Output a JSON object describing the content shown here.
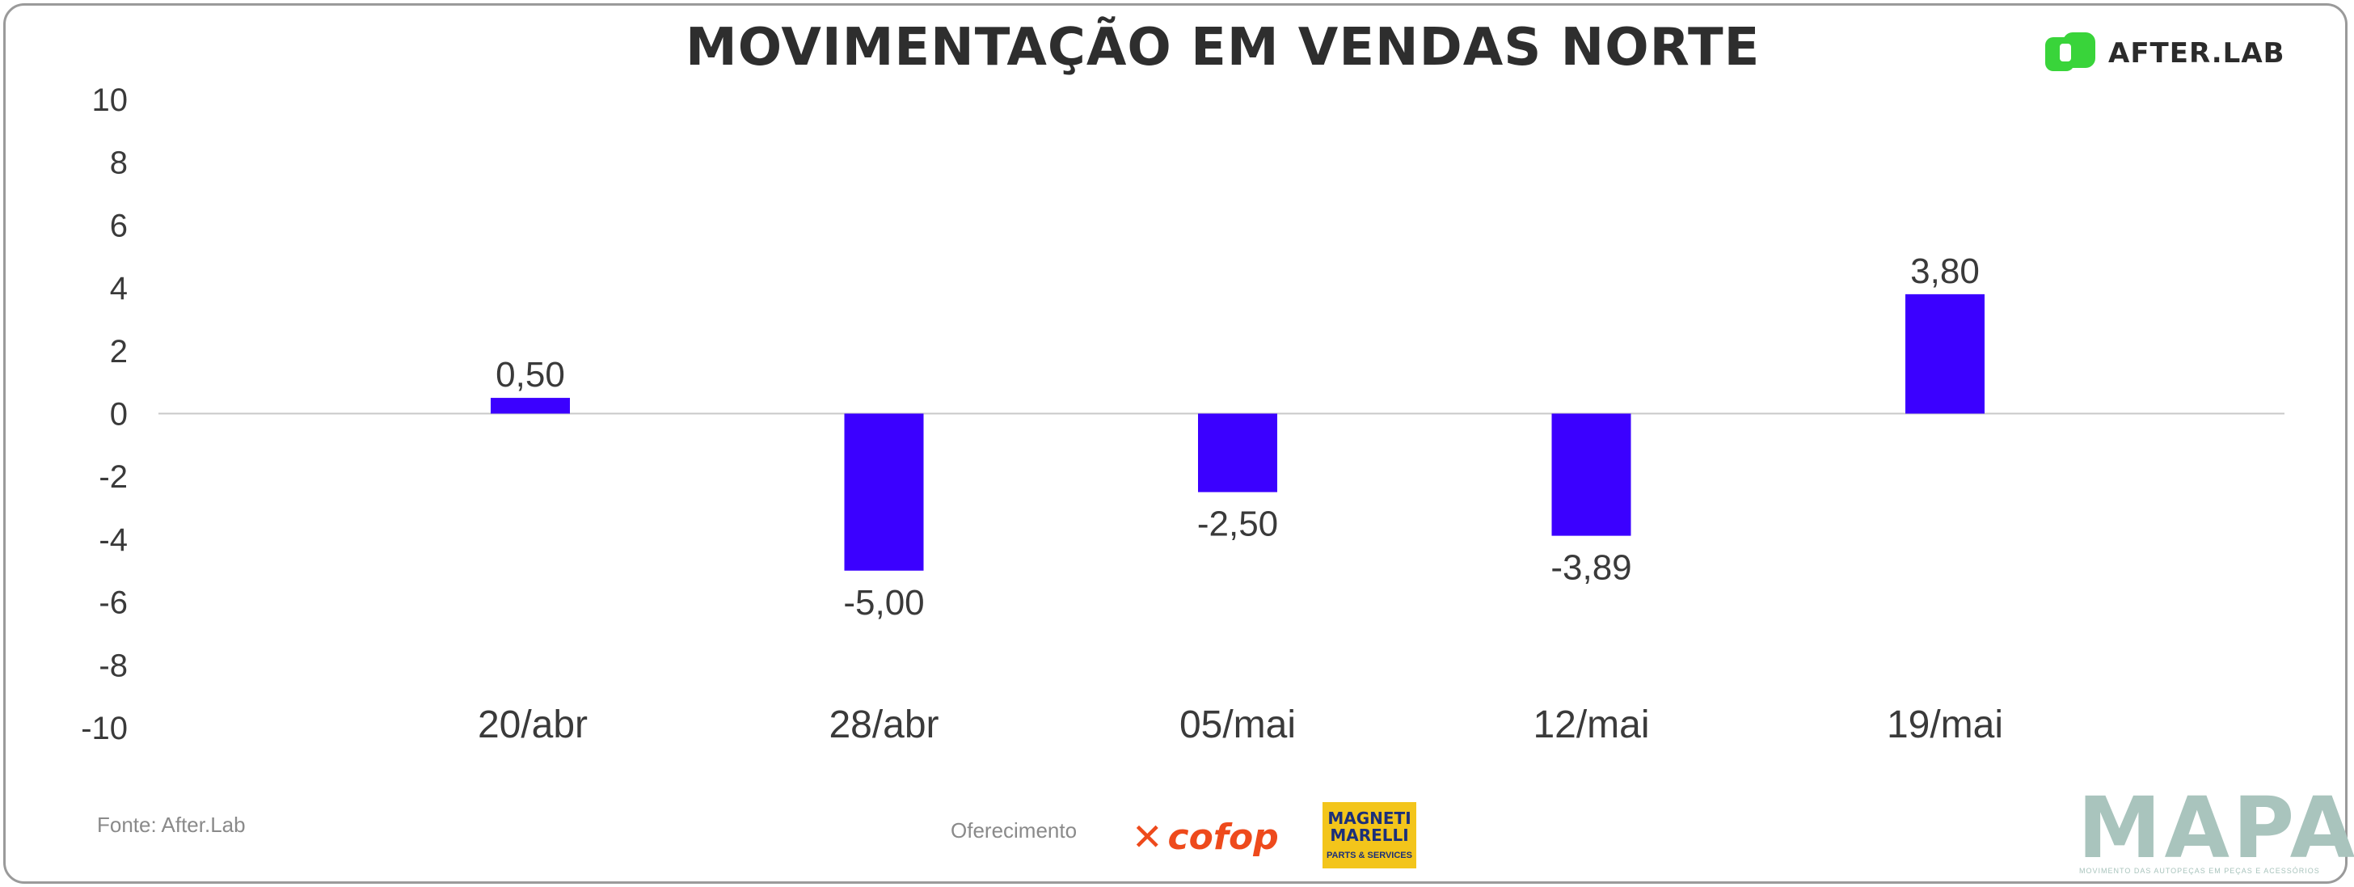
{
  "header": {
    "title": "MOVIMENTAÇÃO EM VENDAS NORTE",
    "brand": "AFTER.LAB"
  },
  "chart_data": {
    "type": "bar",
    "title": "MOVIMENTAÇÃO EM VENDAS NORTE",
    "categories": [
      "20/abr",
      "28/abr",
      "05/mai",
      "12/mai",
      "19/mai"
    ],
    "values": [
      0.5,
      -5.0,
      -2.5,
      -3.89,
      3.8
    ],
    "data_labels": [
      "0,50",
      "-5,00",
      "-2,50",
      "-3,89",
      "3,80"
    ],
    "ylim": [
      -10,
      10
    ],
    "yticks": [
      10,
      8,
      6,
      4,
      2,
      0,
      -2,
      -4,
      -6,
      -8,
      -10
    ],
    "xlabel": "",
    "ylabel": "",
    "bar_color": "#3b00ff",
    "grid": false,
    "legend": "none"
  },
  "footer": {
    "source": "Fonte: After.Lab",
    "support_label": "Oferecimento",
    "sponsor_1": "cofop",
    "sponsor_2_line1": "MAGNETI",
    "sponsor_2_line2": "MARELLI",
    "sponsor_2_line3": "PARTS & SERVICES",
    "mapa": "MAPA",
    "mapa_sub": "MOVIMENTO DAS AUTOPEÇAS EM PEÇAS E ACESSÓRIOS"
  },
  "colors": {
    "accent_green": "#39d43a",
    "bar": "#3b00ff",
    "mapa": "#a9c4bd"
  }
}
